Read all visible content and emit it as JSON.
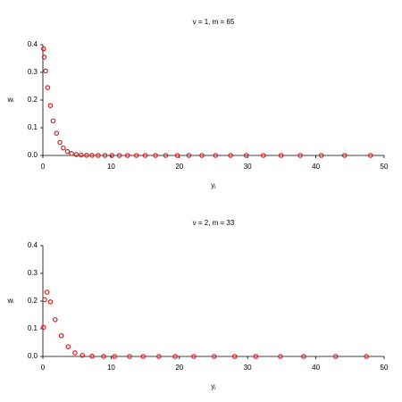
{
  "chart_data": [
    {
      "type": "scatter",
      "title": "ν = 1, m = 65",
      "xlabel": "yⱼ",
      "ylabel": "wᵢ",
      "series": [
        {
          "color": "#e41a1c",
          "x": [
            0.1,
            0.2,
            0.4,
            0.7,
            1.1,
            1.5,
            2.0,
            2.5,
            3.0,
            3.6,
            4.2,
            4.9,
            5.6,
            6.4,
            7.2,
            8.1,
            9.1,
            10.1,
            11.2,
            12.4,
            13.7,
            15.0,
            16.5,
            18.0,
            19.7,
            21.4,
            23.3,
            25.3,
            27.5,
            29.8,
            32.3,
            34.9,
            37.7,
            40.8,
            44.2,
            48.0
          ],
          "values": [
            0.385,
            0.355,
            0.305,
            0.245,
            0.18,
            0.125,
            0.08,
            0.047,
            0.027,
            0.014,
            0.007,
            0.003,
            0.0015,
            0.0006,
            0.0002,
            0.0001,
            0,
            0,
            0,
            0,
            0,
            0,
            0,
            0,
            0,
            0,
            0,
            0,
            0,
            0,
            0,
            0,
            0,
            0,
            0,
            0
          ]
        }
      ],
      "xlim": [
        0,
        50
      ],
      "xticks": [
        0,
        10,
        20,
        30,
        40,
        50
      ],
      "ylim": [
        0,
        0.4
      ],
      "yticks": [
        {
          "value": 0,
          "label": "0.0"
        },
        0.1,
        0.2,
        0.3,
        0.4
      ]
    },
    {
      "type": "scatter",
      "title": "ν = 2, m = 33",
      "xlabel": "yⱼ",
      "ylabel": "wᵢ",
      "series": [
        {
          "color": "#e41a1c",
          "x": [
            0.1,
            0.25,
            0.6,
            1.1,
            1.8,
            2.7,
            3.7,
            4.7,
            5.8,
            7.2,
            8.9,
            10.5,
            12.7,
            14.7,
            17.0,
            19.4,
            22.1,
            25.1,
            28.1,
            31.2,
            34.8,
            38.2,
            42.9,
            47.4
          ],
          "values": [
            0.105,
            0.205,
            0.232,
            0.197,
            0.133,
            0.075,
            0.035,
            0.013,
            0.004,
            0.001,
            0.0002,
            0,
            0,
            0,
            0,
            0,
            0,
            0,
            0,
            0,
            0,
            0,
            0,
            0
          ]
        }
      ],
      "xlim": [
        0,
        50
      ],
      "xticks": [
        0,
        10,
        20,
        30,
        40,
        50
      ],
      "ylim": [
        0,
        0.4
      ],
      "yticks": [
        {
          "value": 0,
          "label": "0.0"
        },
        0.1,
        0.2,
        0.3,
        0.4
      ]
    }
  ]
}
